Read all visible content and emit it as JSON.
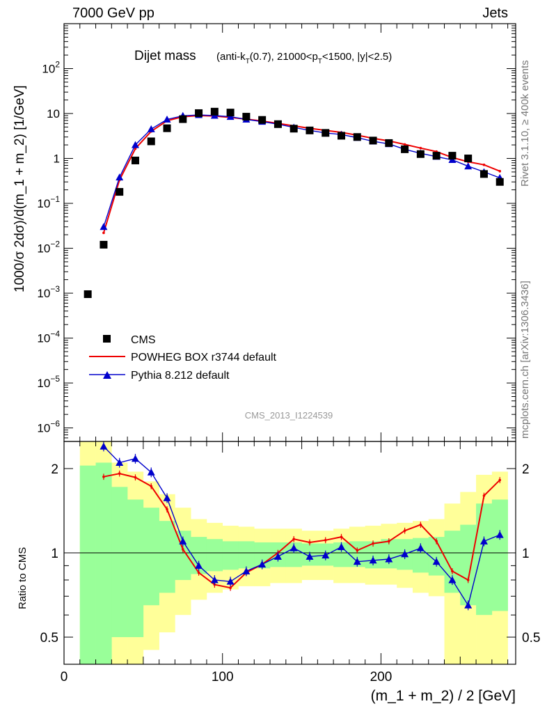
{
  "header": {
    "left": "7000 GeV pp",
    "right": "Jets"
  },
  "side_labels": {
    "rivet": "Rivet 3.1.10, ≥ 400k events",
    "mcplots": "mcplots.cern.ch [arXiv:1306.3436]"
  },
  "colors": {
    "data": "#000000",
    "powheg": "#ee0000",
    "pythia": "#0000cc",
    "band_inner": "#99ff99",
    "band_outer": "#ffff99"
  },
  "chart_data": [
    {
      "type": "scatter",
      "title": "Dijet mass",
      "title_detail_parts": [
        "(anti-k",
        "T",
        "(0.7), 21000<p",
        "T",
        "<1500, |y|<2.5)"
      ],
      "analysis_label": "CMS_2013_I1224539",
      "ylabel": "1000/σ 2dσ)/d(m_1 + m_2) [1/GeV]",
      "yscale": "log",
      "ylim": [
        5e-07,
        1000
      ],
      "xlim": [
        0,
        285
      ],
      "ytick_labels": [
        {
          "base": "10",
          "exp": "2"
        },
        {
          "base": "10",
          "exp": ""
        },
        {
          "base": "1",
          "exp": ""
        },
        {
          "base": "10",
          "exp": "−1"
        },
        {
          "base": "10",
          "exp": "−2"
        },
        {
          "base": "10",
          "exp": "−3"
        },
        {
          "base": "10",
          "exp": "−4"
        },
        {
          "base": "10",
          "exp": "−5"
        },
        {
          "base": "10",
          "exp": "−6"
        }
      ],
      "ytick_values": [
        100,
        10,
        1,
        0.1,
        0.01,
        0.001,
        0.0001,
        1e-05,
        1e-06
      ],
      "legend_position": "lower-left",
      "legend": [
        "CMS",
        "POWHEG BOX r3744 default",
        "Pythia 8.212 default"
      ],
      "x": [
        15,
        25,
        35,
        45,
        55,
        65,
        75,
        85,
        95,
        105,
        115,
        125,
        135,
        145,
        155,
        165,
        175,
        185,
        195,
        205,
        215,
        225,
        235,
        245,
        255,
        265,
        275
      ],
      "series": [
        {
          "name": "CMS",
          "values": [
            0.00095,
            0.012,
            0.18,
            0.9,
            2.4,
            4.7,
            7.5,
            10.2,
            11.0,
            10.5,
            8.5,
            7.2,
            5.8,
            4.6,
            4.2,
            3.7,
            3.2,
            3.0,
            2.5,
            2.2,
            1.6,
            1.25,
            1.15,
            1.15,
            1.0,
            0.45,
            0.3
          ]
        },
        {
          "name": "POWHEG BOX r3744 default",
          "values": [
            null,
            0.022,
            0.33,
            1.65,
            4.0,
            6.9,
            8.5,
            9.0,
            8.8,
            8.2,
            7.5,
            6.8,
            6.0,
            5.3,
            4.7,
            4.2,
            3.8,
            3.3,
            2.8,
            2.45,
            2.05,
            1.7,
            1.42,
            1.05,
            0.84,
            0.72,
            0.52
          ]
        },
        {
          "name": "Pythia 8.212 default",
          "values": [
            null,
            0.03,
            0.38,
            2.0,
            4.5,
            7.4,
            8.9,
            9.3,
            9.0,
            8.5,
            7.4,
            6.6,
            5.8,
            4.9,
            4.2,
            3.7,
            3.4,
            2.9,
            2.4,
            2.1,
            1.6,
            1.3,
            1.1,
            0.93,
            0.67,
            0.5,
            0.37
          ]
        }
      ]
    },
    {
      "type": "line",
      "ylabel": "Ratio to CMS",
      "xlabel": "(m_1 + m_2) / 2 [GeV]",
      "yscale": "log",
      "ylim": [
        0.4,
        2.5
      ],
      "xlim": [
        0,
        285
      ],
      "xtick_labels": [
        "0",
        "100",
        "200"
      ],
      "xtick_values": [
        0,
        100,
        200
      ],
      "ytick_labels": [
        "2",
        "1",
        "0.5"
      ],
      "ytick_values": [
        2,
        1,
        0.5
      ],
      "bin_edges": [
        10,
        20,
        30,
        40,
        50,
        60,
        70,
        80,
        90,
        100,
        110,
        120,
        130,
        140,
        150,
        160,
        170,
        180,
        190,
        200,
        210,
        220,
        230,
        240,
        250,
        260,
        270,
        280
      ],
      "band_inner": {
        "lower": [
          0.3,
          0.3,
          0.5,
          0.5,
          0.65,
          0.72,
          0.8,
          0.84,
          0.86,
          0.87,
          0.88,
          0.88,
          0.89,
          0.89,
          0.9,
          0.9,
          0.89,
          0.89,
          0.88,
          0.88,
          0.87,
          0.85,
          0.83,
          0.72,
          0.65,
          0.6,
          0.62
        ],
        "upper": [
          2.05,
          2.1,
          1.72,
          1.55,
          1.45,
          1.3,
          1.2,
          1.14,
          1.12,
          1.1,
          1.1,
          1.09,
          1.09,
          1.09,
          1.08,
          1.08,
          1.09,
          1.1,
          1.1,
          1.12,
          1.12,
          1.13,
          1.14,
          1.2,
          1.26,
          1.5,
          1.55
        ]
      },
      "band_outer": {
        "lower": [
          0.3,
          0.3,
          0.3,
          0.3,
          0.45,
          0.52,
          0.6,
          0.68,
          0.72,
          0.74,
          0.76,
          0.76,
          0.78,
          0.78,
          0.8,
          0.8,
          0.78,
          0.78,
          0.77,
          0.77,
          0.75,
          0.72,
          0.7,
          0.3,
          0.3,
          0.3,
          0.3
        ],
        "upper": [
          2.6,
          2.6,
          2.1,
          1.95,
          1.8,
          1.62,
          1.45,
          1.32,
          1.28,
          1.25,
          1.24,
          1.22,
          1.22,
          1.22,
          1.2,
          1.2,
          1.22,
          1.24,
          1.25,
          1.27,
          1.28,
          1.3,
          1.32,
          1.5,
          1.65,
          1.9,
          1.95
        ]
      },
      "x": [
        15,
        25,
        35,
        45,
        55,
        65,
        75,
        85,
        95,
        105,
        115,
        125,
        135,
        145,
        155,
        165,
        175,
        185,
        195,
        205,
        215,
        225,
        235,
        245,
        255,
        265,
        275
      ],
      "series": [
        {
          "name": "POWHEG BOX r3744 default",
          "values": [
            null,
            1.87,
            1.92,
            1.86,
            1.73,
            1.43,
            1.03,
            0.85,
            0.77,
            0.75,
            0.85,
            0.91,
            1.0,
            1.12,
            1.09,
            1.11,
            1.14,
            1.02,
            1.08,
            1.1,
            1.2,
            1.26,
            1.1,
            0.86,
            0.8,
            1.6,
            1.82
          ]
        },
        {
          "name": "Pythia 8.212 default",
          "values": [
            null,
            2.4,
            2.1,
            2.17,
            1.94,
            1.57,
            1.1,
            0.9,
            0.8,
            0.79,
            0.86,
            0.91,
            0.97,
            1.04,
            0.97,
            0.98,
            1.05,
            0.93,
            0.94,
            0.95,
            0.99,
            1.04,
            0.93,
            0.8,
            0.65,
            1.1,
            1.16
          ]
        }
      ]
    }
  ]
}
